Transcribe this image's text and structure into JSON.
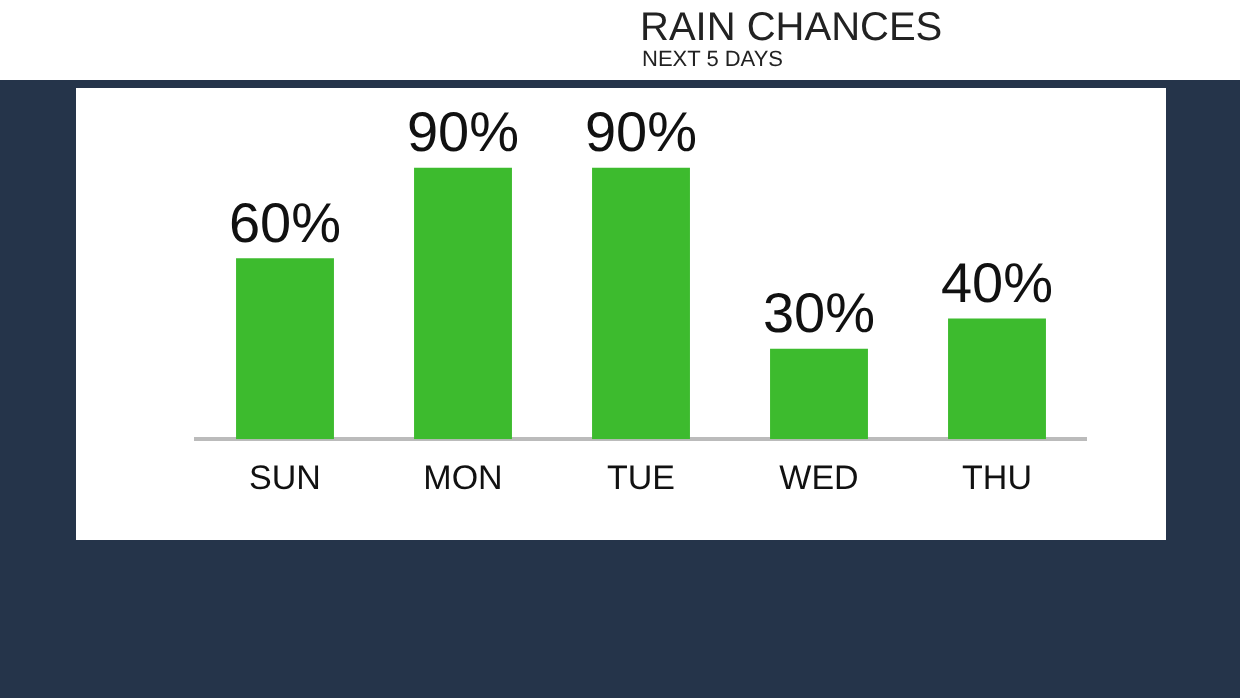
{
  "chart_data": {
    "type": "bar",
    "title": "RAIN CHANCES",
    "subtitle": "NEXT 5 DAYS",
    "categories": [
      "SUN",
      "MON",
      "TUE",
      "WED",
      "THU"
    ],
    "values": [
      60,
      90,
      90,
      30,
      40
    ],
    "value_labels": [
      "60%",
      "90%",
      "90%",
      "30%",
      "40%"
    ],
    "color": "#3dbb2e",
    "grid": false,
    "legend": false
  }
}
